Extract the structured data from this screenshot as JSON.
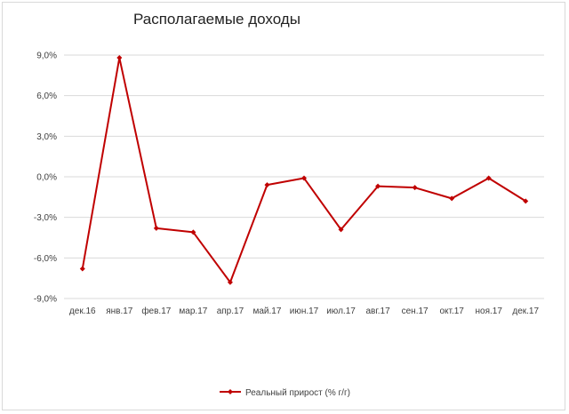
{
  "chart_data": {
    "type": "line",
    "title": "Располагаемые доходы",
    "categories": [
      "дек.16",
      "янв.17",
      "фев.17",
      "мар.17",
      "апр.17",
      "май.17",
      "июн.17",
      "июл.17",
      "авг.17",
      "сен.17",
      "окт.17",
      "ноя.17",
      "дек.17"
    ],
    "series": [
      {
        "name": "Реальный прирост (% г/г)",
        "values": [
          -6.8,
          8.8,
          -3.8,
          -4.1,
          -7.8,
          -0.6,
          -0.1,
          -3.9,
          -0.7,
          -0.8,
          -1.6,
          -0.1,
          -1.8
        ]
      }
    ],
    "y_ticks": [
      "9,0%",
      "6,0%",
      "3,0%",
      "0,0%",
      "-3,0%",
      "-6,0%",
      "-9,0%"
    ],
    "y_tick_values": [
      9,
      6,
      3,
      0,
      -3,
      -6,
      -9
    ],
    "ylim": [
      -9,
      9
    ],
    "grid": true,
    "legend": "bottom",
    "colors": {
      "series": "#c00000",
      "grid": "#d9d9d9",
      "text": "#404040"
    }
  }
}
